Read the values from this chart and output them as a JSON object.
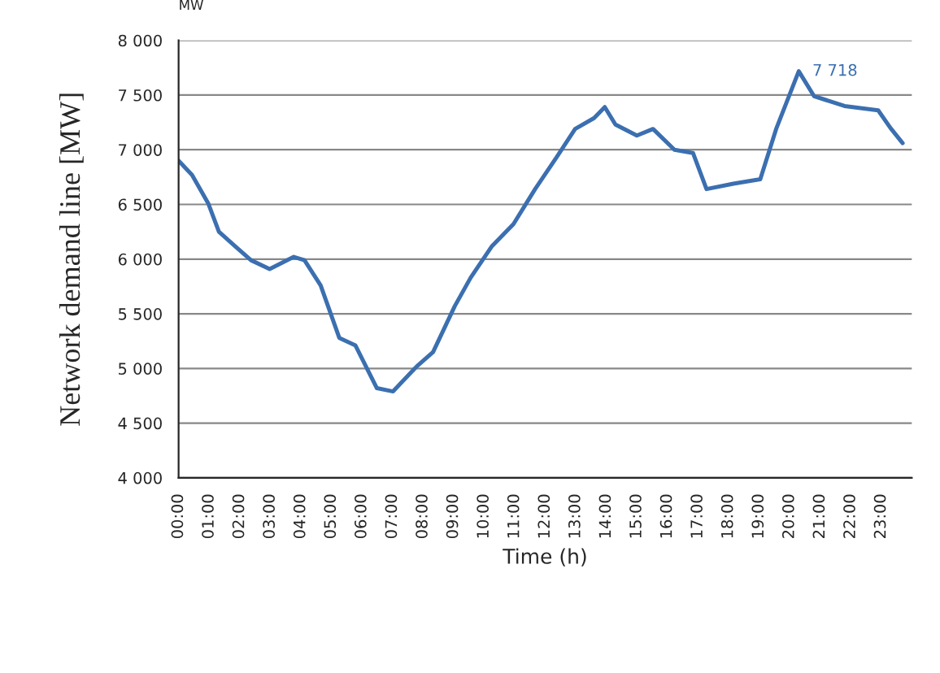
{
  "chart_data": {
    "type": "line",
    "xlabel": "Time (h)",
    "ylabel": "Network demand line [MW]",
    "annotations": [
      "MW",
      {
        "text": "7 718",
        "x": 20.3,
        "y": 7718
      }
    ],
    "series": [
      {
        "color": "#3b6fb0",
        "x": [
          0,
          0.44,
          0.97,
          1.32,
          1.84,
          2.37,
          2.98,
          3.77,
          4.12,
          4.65,
          5.26,
          5.79,
          6.49,
          7.02,
          7.8,
          8.33,
          9.04,
          9.56,
          10.26,
          10.96,
          11.67,
          12.37,
          12.98,
          13.6,
          13.95,
          14.3,
          15.0,
          15.53,
          16.23,
          16.84,
          17.28,
          18.16,
          19.04,
          19.56,
          20.3,
          20.8,
          21.8,
          22.9,
          23.3,
          23.7
        ],
        "values": [
          6900,
          6770,
          6510,
          6250,
          6120,
          5990,
          5910,
          6020,
          5990,
          5760,
          5280,
          5210,
          4820,
          4790,
          5020,
          5150,
          5570,
          5830,
          6120,
          6320,
          6640,
          6930,
          7190,
          7290,
          7390,
          7230,
          7130,
          7190,
          7000,
          6970,
          6640,
          6690,
          6730,
          7190,
          7718,
          7490,
          7400,
          7360,
          7200,
          7060
        ]
      }
    ],
    "xlim": [
      0,
      24
    ],
    "xticks": [
      {
        "value": 0,
        "label": "00:00"
      },
      {
        "value": 1,
        "label": "01:00"
      },
      {
        "value": 2,
        "label": "02:00"
      },
      {
        "value": 3,
        "label": "03:00"
      },
      {
        "value": 4,
        "label": "04:00"
      },
      {
        "value": 5,
        "label": "05:00"
      },
      {
        "value": 6,
        "label": "06:00"
      },
      {
        "value": 7,
        "label": "07:00"
      },
      {
        "value": 8,
        "label": "08:00"
      },
      {
        "value": 9,
        "label": "09:00"
      },
      {
        "value": 10,
        "label": "10:00"
      },
      {
        "value": 11,
        "label": "11:00"
      },
      {
        "value": 12,
        "label": "12:00"
      },
      {
        "value": 13,
        "label": "13:00"
      },
      {
        "value": 14,
        "label": "14:00"
      },
      {
        "value": 15,
        "label": "15:00"
      },
      {
        "value": 16,
        "label": "16:00"
      },
      {
        "value": 17,
        "label": "17:00"
      },
      {
        "value": 18,
        "label": "18:00"
      },
      {
        "value": 19,
        "label": "19:00"
      },
      {
        "value": 20,
        "label": "20:00"
      },
      {
        "value": 21,
        "label": "21:00"
      },
      {
        "value": 22,
        "label": "22:00"
      },
      {
        "value": 23,
        "label": "23:00"
      }
    ],
    "ylim": [
      4000,
      8000
    ],
    "yticks": [
      {
        "value": 4000,
        "label": "4 000"
      },
      {
        "value": 4500,
        "label": "4 500"
      },
      {
        "value": 5000,
        "label": "5 000"
      },
      {
        "value": 5500,
        "label": "5 500"
      },
      {
        "value": 6000,
        "label": "6 000"
      },
      {
        "value": 6500,
        "label": "6 500"
      },
      {
        "value": 7000,
        "label": "7 000"
      },
      {
        "value": 7500,
        "label": "7 500"
      },
      {
        "value": 8000,
        "label": "8 000"
      }
    ],
    "grid": "y",
    "marker": "none",
    "line_style": "solid",
    "legend": false
  }
}
